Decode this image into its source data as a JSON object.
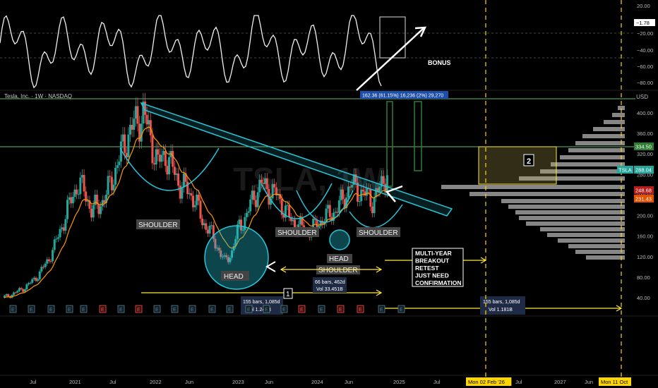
{
  "header": {
    "symbol_title": "Tesla, Inc. · 1W · NASDAQ",
    "watermark": "TSLA, 1W",
    "currency": "USD"
  },
  "oscillator": {
    "axis_labels": [
      "20.00",
      "−20.00",
      "−40.00",
      "−60.00",
      "−80.00"
    ],
    "current_value": "−1.78",
    "bonus_label": "BONUS"
  },
  "price_axis": {
    "tick_labels": [
      "400.00",
      "360.00",
      "320.00",
      "280.00",
      "240.00",
      "200.00",
      "160.00",
      "120.00",
      "80.00",
      "40.00"
    ],
    "tags": [
      {
        "text": "334.50",
        "color": "#2e7d32"
      },
      {
        "text": "288.04",
        "color": "#26a69a",
        "prefix": "TSLA"
      },
      {
        "text": "248.68",
        "color": "#b71c1c"
      },
      {
        "text": "231.43",
        "color": "#e65100"
      }
    ]
  },
  "time_axis": {
    "labels": [
      "Jul",
      "2021",
      "Jul",
      "2022",
      "Jun",
      "2023",
      "Jun",
      "2024",
      "Jun",
      "2025",
      "Jul",
      "Mon 02 Feb '26",
      "Jul",
      "2027",
      "Jun",
      "Mon 11 Oct"
    ]
  },
  "annotations": {
    "shoulder_left": "SHOULDER",
    "head": "HEAD",
    "shoulder_right": "SHOULDER",
    "shoulder_small": "SHOULDER",
    "head_small": "HEAD",
    "shoulder_small_right": "SHOULDER",
    "breakout_note": [
      "MULTI-YEAR",
      "BREAKOUT",
      "RETEST",
      "JUST NEED",
      "CONFIRMATION"
    ],
    "box_label": "2",
    "marker_label": "1",
    "measure_top": "162.36 (61.15%) 16,236  (2%) 29,270",
    "measure_mid": [
      "66 bars, 462d",
      "Vol 33.451B"
    ],
    "measure_left": [
      "155 bars, 1,085d",
      "Vol 1.248B"
    ],
    "measure_right": [
      "155 bars, 1,085d",
      "Vol 1.181B"
    ]
  },
  "earnings_marker": "E",
  "chart_data": {
    "type": "candlestick",
    "interval": "1W",
    "ylim": [
      20,
      440
    ],
    "series": [
      {
        "name": "TSLA",
        "close": [
          40,
          45,
          52,
          60,
          72,
          88,
          110,
          140,
          180,
          220,
          260,
          250,
          210,
          220,
          240,
          280,
          320,
          360,
          380,
          400,
          350,
          300,
          320,
          290,
          260,
          250,
          230,
          190,
          170,
          140,
          110,
          130,
          180,
          200,
          240,
          260,
          250,
          240,
          215,
          190,
          180,
          170,
          175,
          190,
          200,
          210,
          230,
          260,
          250,
          240,
          230,
          250,
          288
        ]
      }
    ],
    "levels": [
      334.5,
      288.04,
      248.68,
      231.43
    ]
  }
}
